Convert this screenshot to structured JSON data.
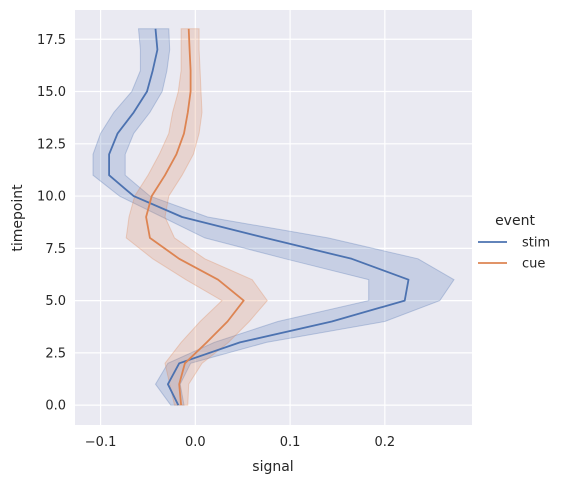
{
  "chart_data": {
    "type": "line",
    "orientation": "y",
    "xlabel": "signal",
    "ylabel": "timepoint",
    "xlim": [
      -0.127,
      0.292
    ],
    "ylim": [
      -0.95,
      18.9
    ],
    "xticks": [
      -0.1,
      0.0,
      0.1,
      0.2
    ],
    "xtick_labels": [
      "−0.1",
      "0.0",
      "0.1",
      "0.2"
    ],
    "yticks": [
      0.0,
      2.5,
      5.0,
      7.5,
      10.0,
      12.5,
      15.0,
      17.5
    ],
    "ytick_labels": [
      "0.0",
      "2.5",
      "5.0",
      "7.5",
      "10.0",
      "12.5",
      "15.0",
      "17.5"
    ],
    "grid": true,
    "background": "#eaeaf2",
    "legend": {
      "title": "event",
      "placement": "right"
    },
    "series": [
      {
        "name": "stim",
        "color": "#4c72b0",
        "y": [
          0,
          1,
          2,
          3,
          4,
          5,
          6,
          7,
          8,
          9,
          10,
          11,
          12,
          13,
          14,
          15,
          16,
          17,
          18
        ],
        "x": [
          -0.018,
          -0.029,
          -0.017,
          0.047,
          0.144,
          0.221,
          0.225,
          0.165,
          0.074,
          -0.014,
          -0.065,
          -0.091,
          -0.091,
          -0.082,
          -0.065,
          -0.051,
          -0.045,
          -0.04,
          -0.042
        ],
        "ci_low": [
          -0.026,
          -0.042,
          -0.029,
          0.02,
          0.087,
          0.183,
          0.183,
          0.095,
          0.01,
          -0.035,
          -0.08,
          -0.108,
          -0.108,
          -0.1,
          -0.086,
          -0.067,
          -0.058,
          -0.058,
          -0.06
        ],
        "ci_high": [
          -0.012,
          -0.016,
          -0.005,
          0.075,
          0.2,
          0.258,
          0.273,
          0.235,
          0.14,
          0.013,
          -0.048,
          -0.074,
          -0.074,
          -0.065,
          -0.048,
          -0.035,
          -0.03,
          -0.027,
          -0.028
        ]
      },
      {
        "name": "cue",
        "color": "#dd8452",
        "y": [
          0,
          1,
          2,
          3,
          4,
          5,
          6,
          7,
          8,
          9,
          10,
          11,
          12,
          13,
          14,
          15,
          16,
          17,
          18
        ],
        "x": [
          -0.015,
          -0.017,
          -0.011,
          0.012,
          0.034,
          0.051,
          0.024,
          -0.017,
          -0.048,
          -0.052,
          -0.046,
          -0.032,
          -0.02,
          -0.012,
          -0.008,
          -0.005,
          -0.005,
          -0.006,
          -0.007
        ],
        "ci_low": [
          -0.022,
          -0.027,
          -0.032,
          -0.015,
          0.005,
          0.028,
          -0.01,
          -0.045,
          -0.073,
          -0.07,
          -0.064,
          -0.05,
          -0.038,
          -0.028,
          -0.024,
          -0.018,
          -0.015,
          -0.015,
          -0.015
        ],
        "ci_high": [
          -0.008,
          -0.007,
          0.007,
          0.035,
          0.057,
          0.076,
          0.06,
          0.01,
          -0.022,
          -0.032,
          -0.028,
          -0.014,
          -0.002,
          0.004,
          0.007,
          0.006,
          0.005,
          0.004,
          0.004
        ]
      }
    ]
  }
}
